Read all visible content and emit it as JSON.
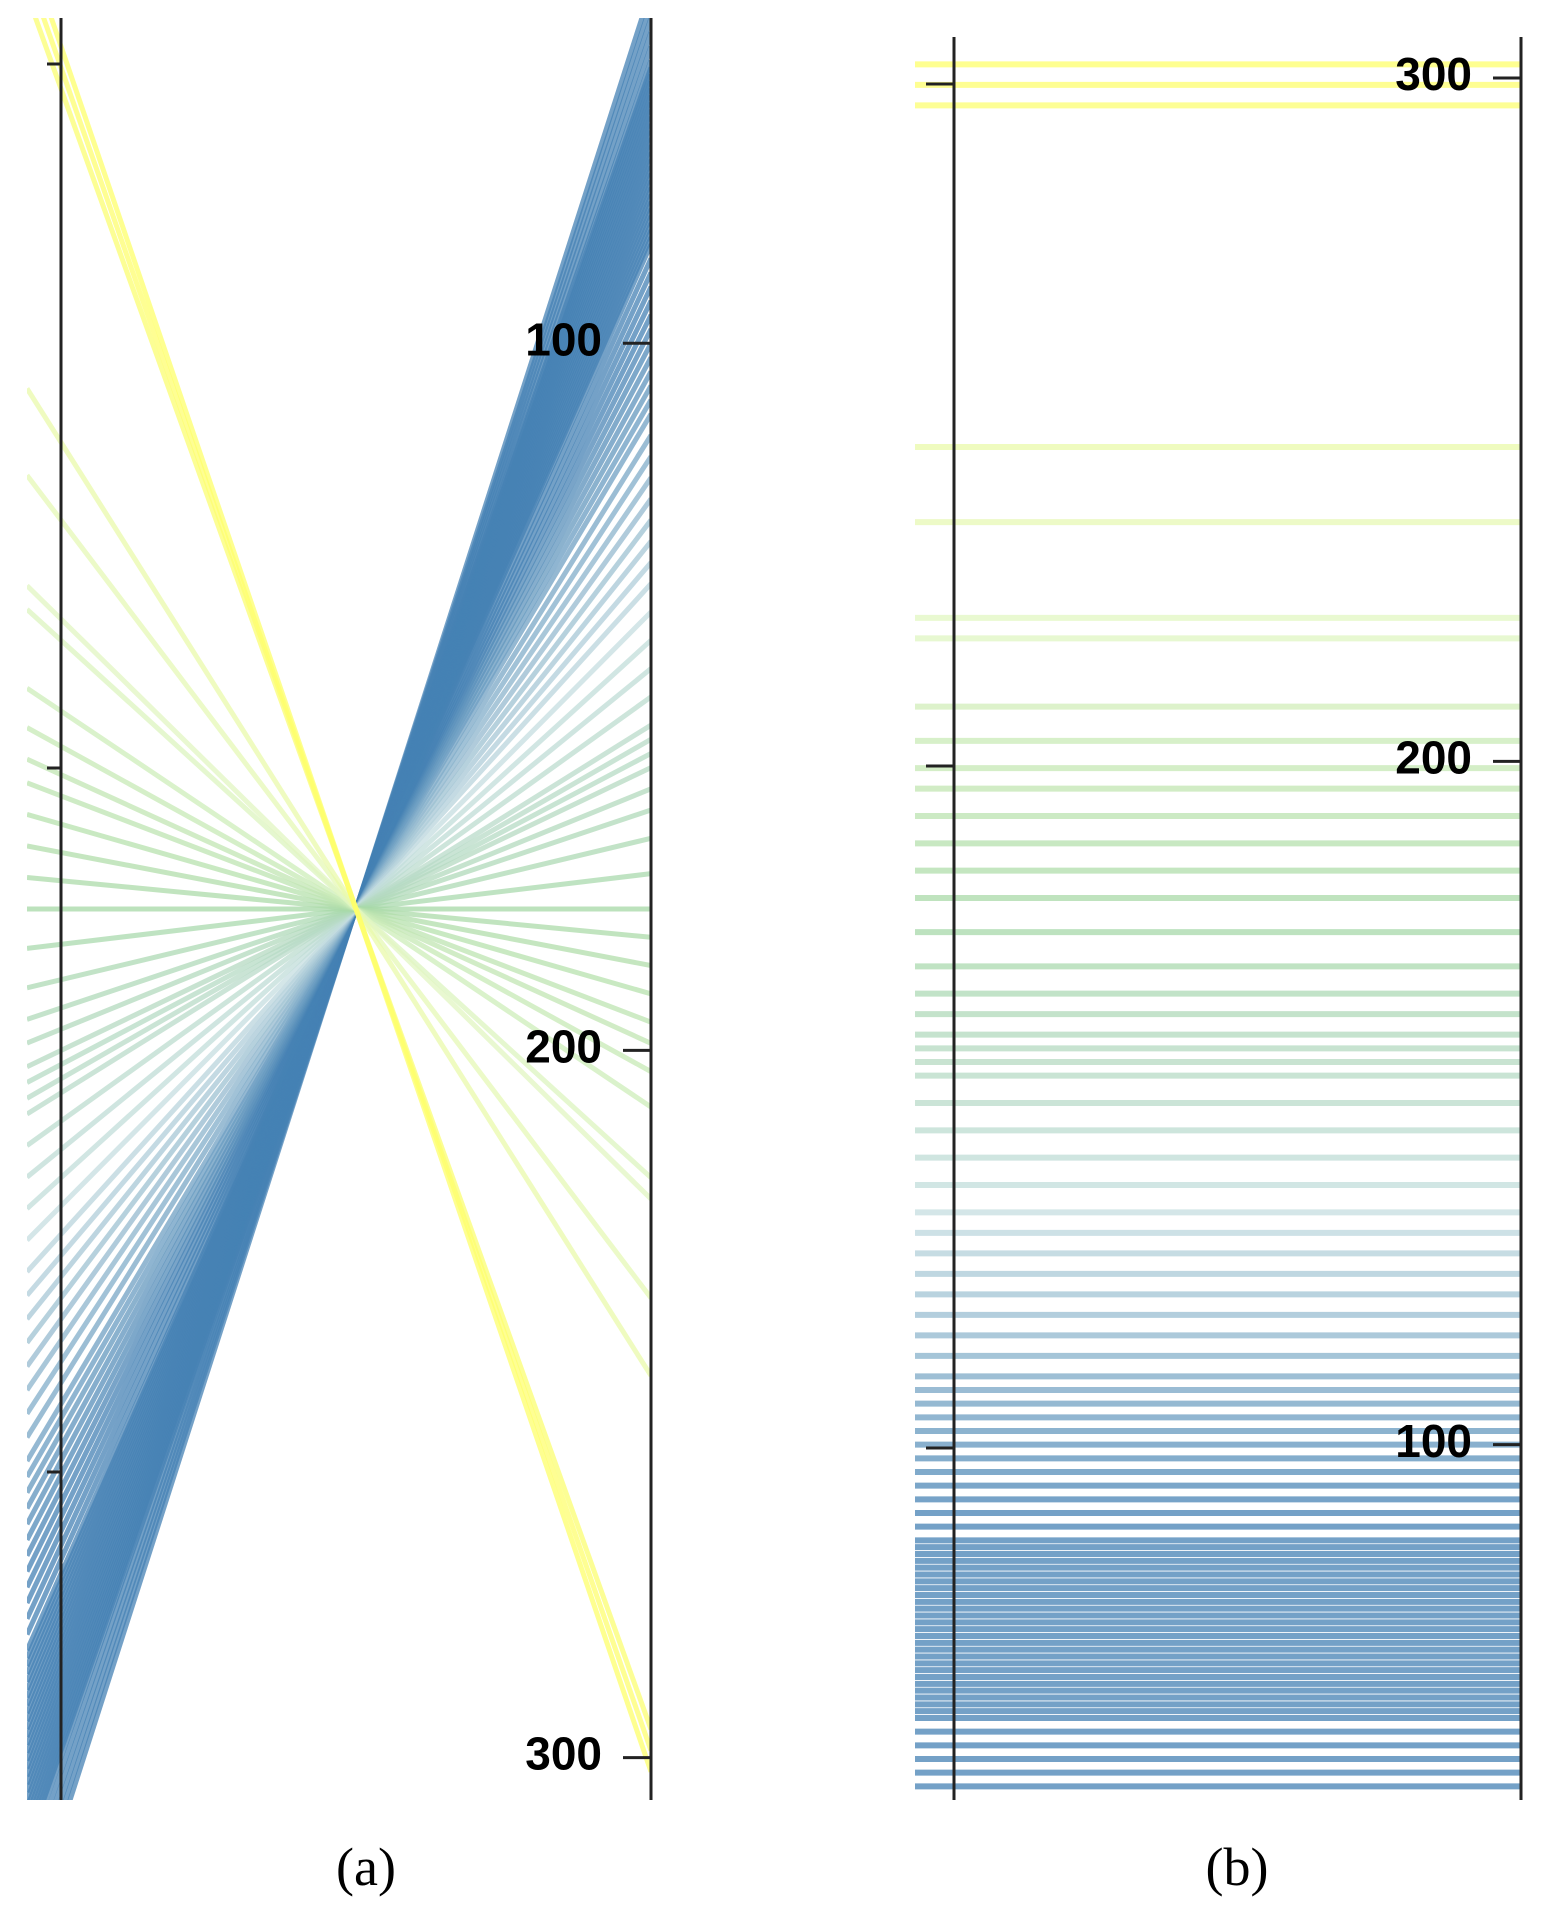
{
  "chart_data": [
    {
      "type": "parallel",
      "caption": "(a)",
      "ylim": [
        306,
        54
      ],
      "yticks": [
        100,
        200,
        300
      ],
      "colormap": [
        "#4682b4",
        "#4682b4",
        "#c5dde0",
        "#a6d8a6",
        "#e2f7c2",
        "#f0fb9a",
        "#ffff66"
      ],
      "values": [
        50,
        52,
        54,
        56,
        58,
        60,
        61,
        62,
        63,
        64,
        65,
        66,
        67,
        68,
        69,
        70,
        71,
        72,
        73,
        74,
        75,
        76,
        77,
        78,
        79,
        80,
        81,
        82,
        83,
        84,
        85,
        86,
        88,
        90,
        92,
        94,
        96,
        98,
        100,
        102,
        104,
        106,
        108,
        110,
        113,
        116,
        119,
        122,
        125,
        128,
        131,
        134,
        138,
        142,
        146,
        150,
        154,
        156,
        158,
        160,
        163,
        166,
        170,
        175,
        180,
        184,
        188,
        192,
        196,
        199,
        203,
        208,
        218,
        221,
        235,
        246,
        296,
        299,
        302
      ]
    },
    {
      "type": "parallel",
      "caption": "(b)",
      "ylim": [
        48,
        306
      ],
      "yticks": [
        100,
        200,
        300
      ],
      "colormap": [
        "#4682b4",
        "#4682b4",
        "#c5dde0",
        "#a6d8a6",
        "#e2f7c2",
        "#f0fb9a",
        "#ffff66"
      ],
      "values": [
        50,
        52,
        54,
        56,
        58,
        60,
        61,
        62,
        63,
        64,
        65,
        66,
        67,
        68,
        69,
        70,
        71,
        72,
        73,
        74,
        75,
        76,
        77,
        78,
        79,
        80,
        81,
        82,
        83,
        84,
        85,
        86,
        88,
        90,
        92,
        94,
        96,
        98,
        100,
        102,
        104,
        106,
        108,
        110,
        113,
        116,
        119,
        122,
        125,
        128,
        131,
        134,
        138,
        142,
        146,
        150,
        154,
        156,
        158,
        160,
        163,
        166,
        170,
        175,
        180,
        184,
        188,
        192,
        196,
        199,
        203,
        208,
        218,
        221,
        235,
        246,
        296,
        299,
        302
      ]
    }
  ]
}
